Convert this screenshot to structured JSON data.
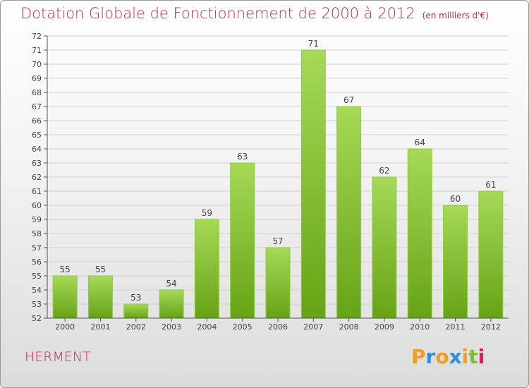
{
  "title": "Dotation Globale de Fonctionnement de 2000 à 2012",
  "unit": "(en milliers d'€)",
  "commune": "HERMENT",
  "logo": {
    "text": "Proxiti",
    "letters": [
      {
        "ch": "P",
        "color": "#f39c1e"
      },
      {
        "ch": "r",
        "color": "#2f8fd6"
      },
      {
        "ch": "o",
        "color": "#f39c1e"
      },
      {
        "ch": "x",
        "color": "#2f8fd6"
      },
      {
        "ch": "i",
        "color": "#f39c1e"
      },
      {
        "ch": "t",
        "color": "#7cbf2f"
      },
      {
        "ch": "i",
        "color": "#c8284b"
      }
    ]
  },
  "colors": {
    "title": "#c8284b",
    "bar_light": "#a6d957",
    "bar_dark": "#6aa619",
    "axis": "#555555",
    "grid": "#d0d0d0"
  },
  "chart_data": {
    "type": "bar",
    "categories": [
      "2000",
      "2001",
      "2002",
      "2003",
      "2004",
      "2005",
      "2006",
      "2007",
      "2008",
      "2009",
      "2010",
      "2011",
      "2012"
    ],
    "values": [
      55,
      55,
      53,
      54,
      59,
      63,
      57,
      71,
      67,
      62,
      64,
      60,
      61
    ],
    "title": "Dotation Globale de Fonctionnement de 2000 à 2012",
    "xlabel": "",
    "ylabel": "",
    "ylim": [
      52,
      72
    ],
    "yticks": [
      52,
      53,
      54,
      55,
      56,
      57,
      58,
      59,
      60,
      61,
      62,
      63,
      64,
      65,
      66,
      67,
      68,
      69,
      70,
      71,
      72
    ],
    "grid": true,
    "data_labels": true
  }
}
